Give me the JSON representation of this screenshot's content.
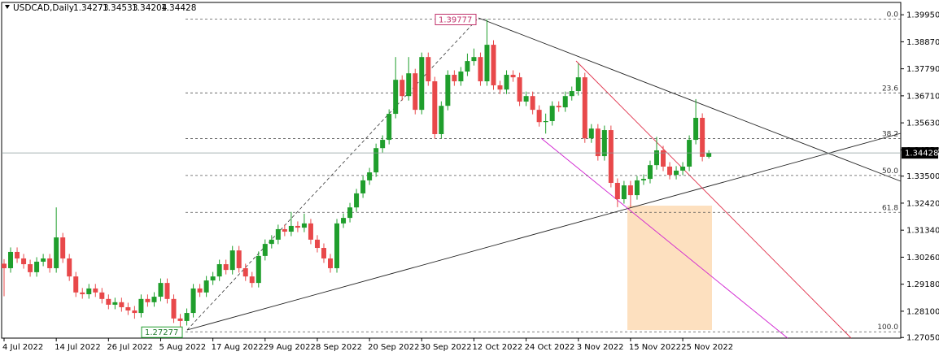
{
  "chart_data": {
    "type": "candlestick",
    "symbol": "USDCAD,Daily",
    "categories": [
      "4 Jul 2022",
      null,
      null,
      null,
      null,
      null,
      null,
      null,
      "14 Jul 2022",
      null,
      null,
      null,
      null,
      null,
      null,
      null,
      "26 Jul 2022",
      null,
      null,
      null,
      null,
      null,
      null,
      null,
      "5 Aug 2022",
      null,
      null,
      null,
      null,
      null,
      null,
      null,
      "17 Aug 2022",
      null,
      null,
      null,
      null,
      null,
      null,
      null,
      "29 Aug 2022",
      null,
      null,
      null,
      null,
      null,
      null,
      null,
      "8 Sep 2022",
      null,
      null,
      null,
      null,
      null,
      null,
      null,
      "20 Sep 2022",
      null,
      null,
      null,
      null,
      null,
      null,
      null,
      "30 Sep 2022",
      null,
      null,
      null,
      null,
      null,
      null,
      null,
      "12 Oct 2022",
      null,
      null,
      null,
      null,
      null,
      null,
      null,
      "24 Oct 2022",
      null,
      null,
      null,
      null,
      null,
      null,
      null,
      "3 Nov 2022",
      null,
      null,
      null,
      null,
      null,
      null,
      null,
      "15 Nov 2022",
      null,
      null,
      null,
      null,
      null,
      null,
      null,
      "25 Nov 2022",
      null,
      null,
      null,
      null
    ],
    "open": [
      1.3,
      1.2982,
      1.3047,
      1.3021,
      1.2998,
      1.2966,
      1.3008,
      1.3021,
      1.2982,
      1.3105,
      1.3021,
      1.2949,
      1.2885,
      1.2878,
      1.2901,
      1.2885,
      1.2859,
      1.2836,
      1.2846,
      1.2826,
      1.2813,
      1.2803,
      1.2859,
      1.2846,
      1.2868,
      1.2923,
      1.2859,
      1.2781,
      1.2771,
      1.2803,
      1.2901,
      1.2885,
      1.2933,
      1.2949,
      1.2998,
      1.2975,
      1.3053,
      1.2982,
      1.2949,
      1.2923,
      1.3031,
      1.3079,
      1.3096,
      1.3138,
      1.3128,
      1.3151,
      1.3144,
      1.3161,
      1.3096,
      1.3063,
      1.3021,
      1.2982,
      1.3161,
      1.3183,
      1.3225,
      1.3281,
      1.3333,
      1.3365,
      1.3462,
      1.3495,
      1.3599,
      1.3735,
      1.367,
      1.3761,
      1.3615,
      1.3826,
      1.3729,
      1.3518,
      1.3631,
      1.3755,
      1.3729,
      1.3768,
      1.381,
      1.3826,
      1.3729,
      1.3875,
      1.3713,
      1.3696,
      1.3755,
      1.3745,
      1.3648,
      1.367,
      1.3615,
      1.3566,
      1.357,
      1.3631,
      1.3625,
      1.367,
      1.369,
      1.3745,
      1.3501,
      1.354,
      1.343,
      1.3534,
      1.3323,
      1.3258,
      1.3313,
      1.3274,
      1.3333,
      1.3339,
      1.3394,
      1.3453,
      1.3388,
      1.3355,
      1.3372,
      1.3388,
      1.3495,
      1.3583,
      1.34273
    ],
    "high": [
      1.3018,
      1.3065,
      1.3065,
      1.3039,
      1.3016,
      1.3026,
      1.3039,
      1.3039,
      1.3225,
      1.3123,
      1.3039,
      1.2967,
      1.2903,
      1.2919,
      1.2919,
      1.2903,
      1.2877,
      1.2864,
      1.2864,
      1.2844,
      1.2831,
      1.2877,
      1.2877,
      1.2886,
      1.2941,
      1.2941,
      1.2877,
      1.2799,
      1.2821,
      1.2919,
      1.2919,
      1.2951,
      1.2967,
      1.3016,
      1.3016,
      1.3071,
      1.3071,
      1.3,
      1.2967,
      1.3049,
      1.3097,
      1.3114,
      1.3156,
      1.3156,
      1.3207,
      1.3169,
      1.32,
      1.3179,
      1.3114,
      1.3081,
      1.3039,
      1.3179,
      1.3201,
      1.3243,
      1.3299,
      1.3351,
      1.3383,
      1.348,
      1.3513,
      1.3617,
      1.3826,
      1.3753,
      1.3826,
      1.3779,
      1.3844,
      1.3844,
      1.3747,
      1.3649,
      1.3773,
      1.3773,
      1.3786,
      1.384,
      1.386,
      1.3844,
      1.39777,
      1.3893,
      1.3731,
      1.3773,
      1.3773,
      1.3763,
      1.3688,
      1.3688,
      1.3633,
      1.36,
      1.3649,
      1.3649,
      1.3688,
      1.3708,
      1.38,
      1.3763,
      1.3558,
      1.3558,
      1.3552,
      1.3552,
      1.3341,
      1.3331,
      1.3331,
      1.3351,
      1.3357,
      1.3412,
      1.3507,
      1.3471,
      1.3406,
      1.339,
      1.3406,
      1.3513,
      1.3658,
      1.3601,
      1.34533
    ],
    "low": [
      1.287,
      1.2964,
      1.3003,
      1.298,
      1.2948,
      1.2948,
      1.299,
      1.2964,
      1.2964,
      1.3003,
      1.2931,
      1.2867,
      1.286,
      1.286,
      1.2867,
      1.2841,
      1.2818,
      1.2818,
      1.2808,
      1.2795,
      1.278,
      1.2785,
      1.2828,
      1.2828,
      1.285,
      1.2841,
      1.2763,
      1.27277,
      1.2753,
      1.2785,
      1.2867,
      1.2867,
      1.2915,
      1.2931,
      1.2957,
      1.2957,
      1.2964,
      1.2931,
      1.2905,
      1.2905,
      1.3013,
      1.3061,
      1.3078,
      1.311,
      1.311,
      1.3126,
      1.3126,
      1.3078,
      1.3045,
      1.3003,
      1.2964,
      1.2964,
      1.3143,
      1.3165,
      1.3207,
      1.3263,
      1.3315,
      1.3347,
      1.3444,
      1.3477,
      1.3581,
      1.3652,
      1.3652,
      1.3597,
      1.3597,
      1.3711,
      1.35,
      1.35,
      1.3613,
      1.3711,
      1.3711,
      1.375,
      1.3792,
      1.3711,
      1.3711,
      1.3695,
      1.3678,
      1.3678,
      1.3727,
      1.363,
      1.363,
      1.3597,
      1.3548,
      1.352,
      1.3552,
      1.3607,
      1.3607,
      1.3652,
      1.3672,
      1.3483,
      1.3483,
      1.3412,
      1.3412,
      1.3305,
      1.3226,
      1.324,
      1.3226,
      1.3256,
      1.3315,
      1.3321,
      1.3376,
      1.337,
      1.3337,
      1.3337,
      1.3354,
      1.337,
      1.3477,
      1.3409,
      1.34204
    ],
    "close": [
      1.2982,
      1.3047,
      1.3021,
      1.2998,
      1.2966,
      1.3008,
      1.3021,
      1.2982,
      1.3105,
      1.3021,
      1.2949,
      1.2885,
      1.2878,
      1.2901,
      1.2885,
      1.2859,
      1.2836,
      1.2846,
      1.2826,
      1.2813,
      1.2803,
      1.2859,
      1.2846,
      1.2868,
      1.2923,
      1.2859,
      1.2781,
      1.2771,
      1.2803,
      1.2901,
      1.2885,
      1.2933,
      1.2949,
      1.2998,
      1.2975,
      1.3053,
      1.2982,
      1.2949,
      1.2923,
      1.3031,
      1.3079,
      1.3096,
      1.3138,
      1.3128,
      1.3151,
      1.3144,
      1.3161,
      1.3096,
      1.3063,
      1.3021,
      1.2982,
      1.3161,
      1.3183,
      1.3225,
      1.3281,
      1.3333,
      1.3365,
      1.3462,
      1.3495,
      1.3599,
      1.3735,
      1.367,
      1.3761,
      1.3615,
      1.3826,
      1.3729,
      1.3518,
      1.3631,
      1.3755,
      1.3729,
      1.3768,
      1.381,
      1.3826,
      1.3729,
      1.3875,
      1.3713,
      1.3696,
      1.3755,
      1.3745,
      1.3648,
      1.367,
      1.3615,
      1.3566,
      1.357,
      1.3631,
      1.3625,
      1.367,
      1.369,
      1.3745,
      1.3501,
      1.354,
      1.343,
      1.3534,
      1.3323,
      1.3258,
      1.3313,
      1.3274,
      1.3333,
      1.3339,
      1.3394,
      1.3453,
      1.3388,
      1.3355,
      1.3372,
      1.3388,
      1.3495,
      1.3583,
      1.34273,
      1.34428
    ],
    "up_color": "#1f9e2c",
    "down_color": "#e8484a",
    "ylim": [
      1.2709,
      1.4041
    ],
    "yticks": [
      {
        "value": 1.3995,
        "label": "1.39950"
      },
      {
        "value": 1.3887,
        "label": "1.38870"
      },
      {
        "value": 1.3779,
        "label": "1.37790"
      },
      {
        "value": 1.3671,
        "label": "1.36710"
      },
      {
        "value": 1.3563,
        "label": "1.35630"
      },
      {
        "value": 1.3455,
        "label": "1.34550"
      },
      {
        "value": 1.335,
        "label": "1.33500"
      },
      {
        "value": 1.3242,
        "label": "1.32420"
      },
      {
        "value": 1.3134,
        "label": "1.31340"
      },
      {
        "value": 1.3026,
        "label": "1.30260"
      },
      {
        "value": 1.2918,
        "label": "1.29180"
      },
      {
        "value": 1.281,
        "label": "1.28100"
      },
      {
        "value": 1.2705,
        "label": "1.27050"
      }
    ],
    "grid": false,
    "fibonacci": {
      "high": 1.39777,
      "low": 1.27277,
      "levels": [
        {
          "value": 0,
          "label": "0.0"
        },
        {
          "value": 23.6,
          "label": "23.6"
        },
        {
          "value": 38.2,
          "label": "38.2"
        },
        {
          "value": 50,
          "label": "50.0"
        },
        {
          "value": 61.8,
          "label": "61.8"
        },
        {
          "value": 100,
          "label": "100.0"
        }
      ]
    }
  }
}
